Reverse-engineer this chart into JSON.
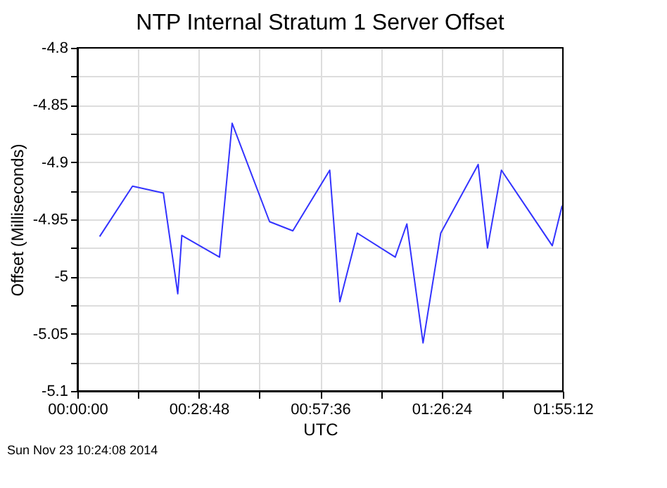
{
  "chart_data": {
    "type": "line",
    "title": "NTP Internal Stratum 1 Server Offset",
    "xlabel": "UTC",
    "ylabel": "Offset (Milliseconds)",
    "annotations": [
      "Sun Nov 23 10:24:08 2014"
    ],
    "x": [
      0.088,
      0.218,
      0.34,
      0.397,
      0.413,
      0.562,
      0.612,
      0.76,
      0.852,
      0.998,
      1.038,
      1.107,
      1.257,
      1.303,
      1.367,
      1.437,
      1.585,
      1.622,
      1.677,
      1.878,
      1.917
    ],
    "series": [
      {
        "color": "#3333ff",
        "values": [
          -4.965,
          -4.921,
          -4.927,
          -5.015,
          -4.964,
          -4.983,
          -4.866,
          -4.952,
          -4.96,
          -4.907,
          -5.022,
          -4.962,
          -4.983,
          -4.954,
          -5.058,
          -4.962,
          -4.902,
          -4.975,
          -4.907,
          -4.973,
          -4.938
        ]
      }
    ],
    "xlim": [
      0,
      1.92
    ],
    "xticks": [
      {
        "value": 0,
        "label": "00:00:00"
      },
      {
        "value": 0.24,
        "label": null
      },
      {
        "value": 0.48,
        "label": "00:28:48"
      },
      {
        "value": 0.72,
        "label": null
      },
      {
        "value": 0.96,
        "label": "00:57:36"
      },
      {
        "value": 1.2,
        "label": null
      },
      {
        "value": 1.44,
        "label": "01:26:24"
      },
      {
        "value": 1.68,
        "label": null
      },
      {
        "value": 1.92,
        "label": "01:55:12"
      }
    ],
    "ylim": [
      -5.1,
      -4.8
    ],
    "yticks": [
      -5.1,
      {
        "value": -5.075,
        "label": null
      },
      -5.05,
      {
        "value": -5.025,
        "label": null
      },
      -5,
      {
        "value": -4.975,
        "label": null
      },
      -4.95,
      {
        "value": -4.925,
        "label": null
      },
      -4.9,
      {
        "value": -4.875,
        "label": null
      },
      -4.85,
      {
        "value": -4.825,
        "label": null
      },
      -4.8
    ],
    "grid": true,
    "marker": "none",
    "line_style": "solid"
  }
}
